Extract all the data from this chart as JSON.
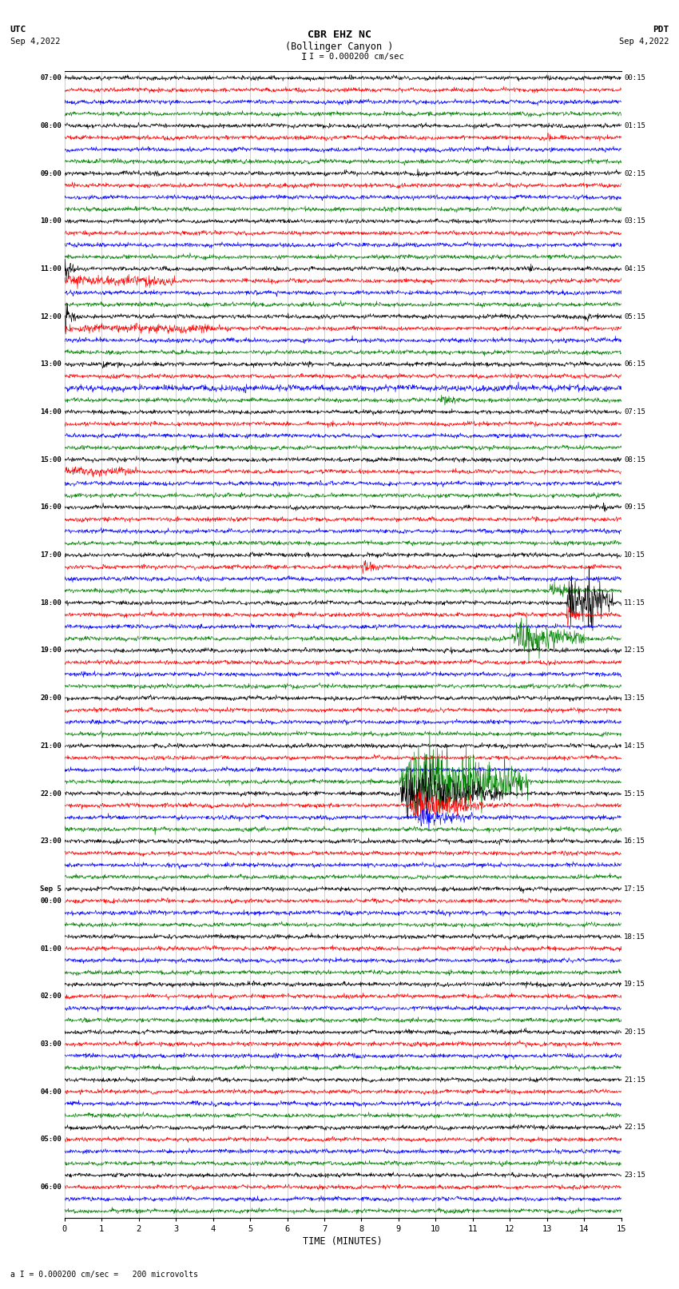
{
  "title_line1": "CBR EHZ NC",
  "title_line2": "(Bollinger Canyon )",
  "scale_text": "I = 0.000200 cm/sec",
  "utc_label": "UTC",
  "utc_date": "Sep 4,2022",
  "pdt_label": "PDT",
  "pdt_date": "Sep 4,2022",
  "bottom_label": "TIME (MINUTES)",
  "bottom_note": "a I = 0.000200 cm/sec =   200 microvolts",
  "left_times": [
    "07:00",
    "",
    "",
    "",
    "08:00",
    "",
    "",
    "",
    "09:00",
    "",
    "",
    "",
    "10:00",
    "",
    "",
    "",
    "11:00",
    "",
    "",
    "",
    "12:00",
    "",
    "",
    "",
    "13:00",
    "",
    "",
    "",
    "14:00",
    "",
    "",
    "",
    "15:00",
    "",
    "",
    "",
    "16:00",
    "",
    "",
    "",
    "17:00",
    "",
    "",
    "",
    "18:00",
    "",
    "",
    "",
    "19:00",
    "",
    "",
    "",
    "20:00",
    "",
    "",
    "",
    "21:00",
    "",
    "",
    "",
    "22:00",
    "",
    "",
    "",
    "23:00",
    "",
    "",
    "",
    "Sep 5",
    "00:00",
    "",
    "",
    "",
    "01:00",
    "",
    "",
    "",
    "02:00",
    "",
    "",
    "",
    "03:00",
    "",
    "",
    "",
    "04:00",
    "",
    "",
    "",
    "05:00",
    "",
    "",
    "",
    "06:00"
  ],
  "right_times": [
    "00:15",
    "",
    "",
    "",
    "01:15",
    "",
    "",
    "",
    "02:15",
    "",
    "",
    "",
    "03:15",
    "",
    "",
    "",
    "04:15",
    "",
    "",
    "",
    "05:15",
    "",
    "",
    "",
    "06:15",
    "",
    "",
    "",
    "07:15",
    "",
    "",
    "",
    "08:15",
    "",
    "",
    "",
    "09:15",
    "",
    "",
    "",
    "10:15",
    "",
    "",
    "",
    "11:15",
    "",
    "",
    "",
    "12:15",
    "",
    "",
    "",
    "13:15",
    "",
    "",
    "",
    "14:15",
    "",
    "",
    "",
    "15:15",
    "",
    "",
    "",
    "16:15",
    "",
    "",
    "",
    "17:15",
    "",
    "",
    "",
    "18:15",
    "",
    "",
    "",
    "19:15",
    "",
    "",
    "",
    "20:15",
    "",
    "",
    "",
    "21:15",
    "",
    "",
    "",
    "22:15",
    "",
    "",
    "",
    "23:15"
  ],
  "n_rows": 96,
  "n_cols_per_row": 1500,
  "colors_cycle": [
    "black",
    "red",
    "blue",
    "green"
  ],
  "background_color": "white",
  "x_ticks": [
    0,
    1,
    2,
    3,
    4,
    5,
    6,
    7,
    8,
    9,
    10,
    11,
    12,
    13,
    14,
    15
  ],
  "fig_width": 8.5,
  "fig_height": 16.13,
  "dpi": 100
}
